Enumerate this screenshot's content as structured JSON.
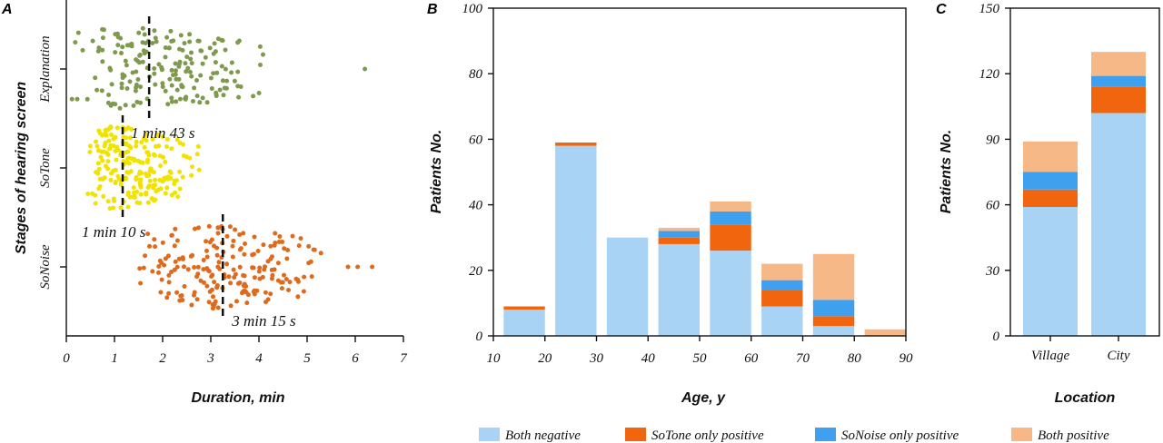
{
  "panels": {
    "a": "A",
    "b": "B",
    "c": "C"
  },
  "chart_data": [
    {
      "type": "scatter",
      "panel": "A",
      "xlabel": "Duration, min",
      "ylabel": "Stages of hearing screen",
      "xlim": [
        0,
        7
      ],
      "xticks": [
        "0",
        "1",
        "2",
        "3",
        "4",
        "5",
        "6",
        "7"
      ],
      "categories": [
        "Explanation",
        "SoTone",
        "SoNoise"
      ],
      "series": [
        {
          "category": "Explanation",
          "color": "#7f9a4e",
          "median": 1.72,
          "median_label": "1 min 43 s",
          "count": 190,
          "min": 0.1,
          "mode": 1.4,
          "max": 4.3,
          "outliers": [
            6.2
          ]
        },
        {
          "category": "SoTone",
          "color": "#f2e200",
          "median": 1.17,
          "median_label": "1 min 10 s",
          "count": 220,
          "min": 0.4,
          "mode": 0.95,
          "max": 2.9,
          "outliers": []
        },
        {
          "category": "SoNoise",
          "color": "#e06a1c",
          "median": 3.25,
          "median_label": "3 min 15 s",
          "count": 200,
          "min": 1.5,
          "mode": 2.9,
          "max": 5.6,
          "outliers": [
            5.85,
            6.05,
            6.35
          ]
        }
      ]
    },
    {
      "type": "bar",
      "stacked": true,
      "panel": "B",
      "xlabel": "Age, y",
      "ylabel": "Patients No.",
      "xlim": [
        10,
        90
      ],
      "ylim": [
        0,
        100
      ],
      "xticks": [
        "10",
        "20",
        "30",
        "40",
        "50",
        "60",
        "70",
        "80",
        "90"
      ],
      "yticks": [
        "0",
        "20",
        "40",
        "60",
        "80",
        "100"
      ],
      "bins": [
        {
          "from": 12,
          "to": 20,
          "values": [
            8,
            1,
            0,
            0
          ]
        },
        {
          "from": 22,
          "to": 30,
          "values": [
            58,
            1,
            0,
            0
          ]
        },
        {
          "from": 32,
          "to": 40,
          "values": [
            30,
            0,
            0,
            0
          ]
        },
        {
          "from": 42,
          "to": 50,
          "values": [
            28,
            2,
            2,
            1
          ]
        },
        {
          "from": 52,
          "to": 60,
          "values": [
            26,
            8,
            4,
            3
          ]
        },
        {
          "from": 62,
          "to": 70,
          "values": [
            9,
            5,
            3,
            5
          ]
        },
        {
          "from": 72,
          "to": 80,
          "values": [
            3,
            3,
            5,
            14
          ]
        },
        {
          "from": 82,
          "to": 90,
          "values": [
            0,
            0,
            0,
            2
          ]
        }
      ]
    },
    {
      "type": "bar",
      "stacked": true,
      "panel": "C",
      "xlabel": "Location",
      "ylabel": "Patients No.",
      "ylim": [
        0,
        150
      ],
      "yticks": [
        "0",
        "30",
        "60",
        "90",
        "120",
        "150"
      ],
      "categories": [
        "Village",
        "City"
      ],
      "series_values": [
        [
          59,
          8,
          8,
          14
        ],
        [
          102,
          12,
          5,
          11
        ]
      ]
    }
  ],
  "legend": [
    {
      "name": "Both negative",
      "color": "#a8d3f5"
    },
    {
      "name": "SoTone only positive",
      "color": "#f2650f"
    },
    {
      "name": "SoNoise only positive",
      "color": "#3ea0ef"
    },
    {
      "name": "Both positive",
      "color": "#f7b888"
    }
  ]
}
